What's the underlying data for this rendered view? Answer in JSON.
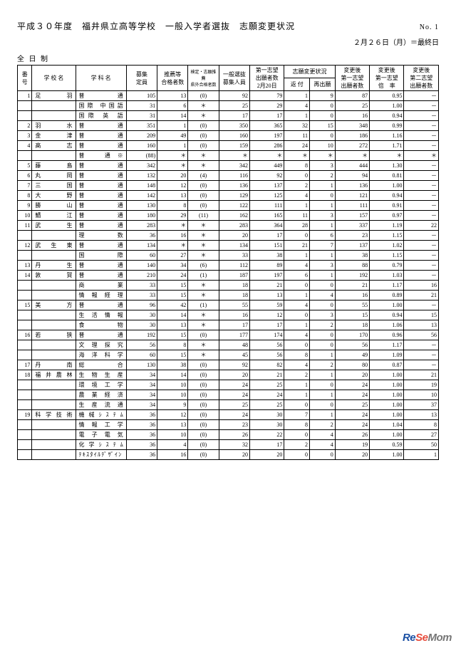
{
  "header": {
    "title": "平成３０年度　福井県立高等学校　一般入学者選抜　志願変更状況",
    "page_no": "No. 1",
    "date_note": "２月２６日（月）＝最終日",
    "section": "全 日 制"
  },
  "columns": {
    "no": "番号",
    "school": "学 校 名",
    "dept": "学 科 名",
    "quota": "募集\n定員",
    "rec": "推薦等\n合格者数",
    "spec": "検定・志願推薦\n県外合格者数",
    "gen": "一般選抜\n募集人員",
    "app1": "第一志望\n出願者数\n2月20日",
    "change_group": "志願変更状況",
    "ret": "返 付",
    "rea": "再出願",
    "aft": "変更後\n第一志望\n出願者数",
    "rate": "変更後\n第一志望\n倍　率",
    "s2": "変更後\n第二志望\n出願者数"
  },
  "rows": [
    {
      "no": "1",
      "school": "足　羽",
      "dept": "普　　通",
      "q": "105",
      "rec": "13",
      "spec": "(0)",
      "gen": "92",
      "a1": "79",
      "ret": "1",
      "rea": "9",
      "aft": "87",
      "rate": "0.95",
      "s2": "－"
    },
    {
      "no": "",
      "school": "",
      "dept": "国際 中国語",
      "q": "31",
      "rec": "6",
      "spec": "＊",
      "gen": "25",
      "a1": "29",
      "ret": "4",
      "rea": "0",
      "aft": "25",
      "rate": "1.00",
      "s2": "－"
    },
    {
      "no": "",
      "school": "",
      "dept": "国際 英 語",
      "q": "31",
      "rec": "14",
      "spec": "＊",
      "gen": "17",
      "a1": "17",
      "ret": "1",
      "rea": "0",
      "aft": "16",
      "rate": "0.94",
      "s2": "－"
    },
    {
      "no": "2",
      "school": "羽　水",
      "dept": "普　　通",
      "q": "351",
      "rec": "1",
      "spec": "(0)",
      "gen": "350",
      "a1": "365",
      "ret": "32",
      "rea": "15",
      "aft": "348",
      "rate": "0.99",
      "s2": "－"
    },
    {
      "no": "3",
      "school": "金　津",
      "dept": "普　　通",
      "q": "209",
      "rec": "49",
      "spec": "(0)",
      "gen": "160",
      "a1": "197",
      "ret": "11",
      "rea": "0",
      "aft": "186",
      "rate": "1.16",
      "s2": "－"
    },
    {
      "no": "4",
      "school": "高　志",
      "dept": "普　　通",
      "q": "160",
      "rec": "1",
      "spec": "(0)",
      "gen": "159",
      "a1": "286",
      "ret": "24",
      "rea": "10",
      "aft": "272",
      "rate": "1.71",
      "s2": "－"
    },
    {
      "no": "",
      "school": "",
      "dept": "普　通※",
      "q": "(88)",
      "rec": "＊",
      "spec": "＊",
      "gen": "＊",
      "a1": "＊",
      "ret": "＊",
      "rea": "＊",
      "aft": "＊",
      "rate": "＊",
      "s2": "＊"
    },
    {
      "no": "5",
      "school": "藤　島",
      "dept": "普　　通",
      "q": "342",
      "rec": "＊",
      "spec": "＊",
      "gen": "342",
      "a1": "449",
      "ret": "8",
      "rea": "3",
      "aft": "444",
      "rate": "1.30",
      "s2": "－"
    },
    {
      "no": "6",
      "school": "丸　岡",
      "dept": "普　　通",
      "q": "132",
      "rec": "20",
      "spec": "(4)",
      "gen": "116",
      "a1": "92",
      "ret": "0",
      "rea": "2",
      "aft": "94",
      "rate": "0.81",
      "s2": "－"
    },
    {
      "no": "7",
      "school": "三　国",
      "dept": "普　　通",
      "q": "148",
      "rec": "12",
      "spec": "(0)",
      "gen": "136",
      "a1": "137",
      "ret": "2",
      "rea": "1",
      "aft": "136",
      "rate": "1.00",
      "s2": "－"
    },
    {
      "no": "8",
      "school": "大　野",
      "dept": "普　　通",
      "q": "142",
      "rec": "13",
      "spec": "(0)",
      "gen": "129",
      "a1": "125",
      "ret": "4",
      "rea": "0",
      "aft": "121",
      "rate": "0.94",
      "s2": "－"
    },
    {
      "no": "9",
      "school": "勝　山",
      "dept": "普　　通",
      "q": "130",
      "rec": "8",
      "spec": "(0)",
      "gen": "122",
      "a1": "111",
      "ret": "1",
      "rea": "1",
      "aft": "111",
      "rate": "0.91",
      "s2": "－"
    },
    {
      "no": "10",
      "school": "鯖　江",
      "dept": "普　　通",
      "q": "180",
      "rec": "29",
      "spec": "(11)",
      "gen": "162",
      "a1": "165",
      "ret": "11",
      "rea": "3",
      "aft": "157",
      "rate": "0.97",
      "s2": "－"
    },
    {
      "no": "11",
      "school": "武　生",
      "dept": "普　　通",
      "q": "283",
      "rec": "＊",
      "spec": "＊",
      "gen": "283",
      "a1": "364",
      "ret": "28",
      "rea": "1",
      "aft": "337",
      "rate": "1.19",
      "s2": "22"
    },
    {
      "no": "",
      "school": "",
      "dept": "理　　数",
      "q": "36",
      "rec": "16",
      "spec": "＊",
      "gen": "20",
      "a1": "17",
      "ret": "0",
      "rea": "6",
      "aft": "23",
      "rate": "1.15",
      "s2": "－"
    },
    {
      "no": "12",
      "school": "武生東",
      "dept": "普　　通",
      "q": "134",
      "rec": "＊",
      "spec": "＊",
      "gen": "134",
      "a1": "151",
      "ret": "21",
      "rea": "7",
      "aft": "137",
      "rate": "1.02",
      "s2": "－"
    },
    {
      "no": "",
      "school": "",
      "dept": "国　　際",
      "q": "60",
      "rec": "27",
      "spec": "＊",
      "gen": "33",
      "a1": "38",
      "ret": "1",
      "rea": "1",
      "aft": "38",
      "rate": "1.15",
      "s2": "－"
    },
    {
      "no": "13",
      "school": "丹　生",
      "dept": "普　　通",
      "q": "140",
      "rec": "34",
      "spec": "(6)",
      "gen": "112",
      "a1": "89",
      "ret": "4",
      "rea": "3",
      "aft": "88",
      "rate": "0.79",
      "s2": "－"
    },
    {
      "no": "14",
      "school": "敦　賀",
      "dept": "普　　通",
      "q": "210",
      "rec": "24",
      "spec": "(1)",
      "gen": "187",
      "a1": "197",
      "ret": "6",
      "rea": "1",
      "aft": "192",
      "rate": "1.03",
      "s2": "－"
    },
    {
      "no": "",
      "school": "",
      "dept": "商　　業",
      "q": "33",
      "rec": "15",
      "spec": "＊",
      "gen": "18",
      "a1": "21",
      "ret": "0",
      "rea": "0",
      "aft": "21",
      "rate": "1.17",
      "s2": "16"
    },
    {
      "no": "",
      "school": "",
      "dept": "情報経理",
      "q": "33",
      "rec": "15",
      "spec": "＊",
      "gen": "18",
      "a1": "13",
      "ret": "1",
      "rea": "4",
      "aft": "16",
      "rate": "0.89",
      "s2": "21"
    },
    {
      "no": "15",
      "school": "美　方",
      "dept": "普　　通",
      "q": "96",
      "rec": "42",
      "spec": "(1)",
      "gen": "55",
      "a1": "59",
      "ret": "4",
      "rea": "0",
      "aft": "55",
      "rate": "1.00",
      "s2": "－"
    },
    {
      "no": "",
      "school": "",
      "dept": "生活情報",
      "q": "30",
      "rec": "14",
      "spec": "＊",
      "gen": "16",
      "a1": "12",
      "ret": "0",
      "rea": "3",
      "aft": "15",
      "rate": "0.94",
      "s2": "15"
    },
    {
      "no": "",
      "school": "",
      "dept": "食　　物",
      "q": "30",
      "rec": "13",
      "spec": "＊",
      "gen": "17",
      "a1": "17",
      "ret": "1",
      "rea": "2",
      "aft": "18",
      "rate": "1.06",
      "s2": "13"
    },
    {
      "no": "16",
      "school": "若　狭",
      "dept": "普　　通",
      "q": "192",
      "rec": "15",
      "spec": "(0)",
      "gen": "177",
      "a1": "174",
      "ret": "4",
      "rea": "0",
      "aft": "170",
      "rate": "0.96",
      "s2": "56"
    },
    {
      "no": "",
      "school": "",
      "dept": "文理探究",
      "q": "56",
      "rec": "8",
      "spec": "＊",
      "gen": "48",
      "a1": "56",
      "ret": "0",
      "rea": "0",
      "aft": "56",
      "rate": "1.17",
      "s2": "－"
    },
    {
      "no": "",
      "school": "",
      "dept": "海洋科学",
      "q": "60",
      "rec": "15",
      "spec": "＊",
      "gen": "45",
      "a1": "56",
      "ret": "8",
      "rea": "1",
      "aft": "49",
      "rate": "1.09",
      "s2": "－"
    },
    {
      "no": "17",
      "school": "丹　南",
      "dept": "総　　合",
      "q": "130",
      "rec": "38",
      "spec": "(0)",
      "gen": "92",
      "a1": "82",
      "ret": "4",
      "rea": "2",
      "aft": "80",
      "rate": "0.87",
      "s2": "－"
    },
    {
      "no": "18",
      "school": "福井農林",
      "dept": "生物生産",
      "q": "34",
      "rec": "14",
      "spec": "(0)",
      "gen": "20",
      "a1": "21",
      "ret": "2",
      "rea": "1",
      "aft": "20",
      "rate": "1.00",
      "s2": "21"
    },
    {
      "no": "",
      "school": "",
      "dept": "環境工学",
      "q": "34",
      "rec": "10",
      "spec": "(0)",
      "gen": "24",
      "a1": "25",
      "ret": "1",
      "rea": "0",
      "aft": "24",
      "rate": "1.00",
      "s2": "19"
    },
    {
      "no": "",
      "school": "",
      "dept": "農業経済",
      "q": "34",
      "rec": "10",
      "spec": "(0)",
      "gen": "24",
      "a1": "24",
      "ret": "1",
      "rea": "1",
      "aft": "24",
      "rate": "1.00",
      "s2": "10"
    },
    {
      "no": "",
      "school": "",
      "dept": "生産流通",
      "q": "34",
      "rec": "9",
      "spec": "(0)",
      "gen": "25",
      "a1": "25",
      "ret": "0",
      "rea": "0",
      "aft": "25",
      "rate": "1.00",
      "s2": "37"
    },
    {
      "no": "19",
      "school": "科学技術",
      "dept": "機械ｼｽﾃﾑ",
      "q": "36",
      "rec": "12",
      "spec": "(0)",
      "gen": "24",
      "a1": "30",
      "ret": "7",
      "rea": "1",
      "aft": "24",
      "rate": "1.00",
      "s2": "13"
    },
    {
      "no": "",
      "school": "",
      "dept": "情報工学",
      "q": "36",
      "rec": "13",
      "spec": "(0)",
      "gen": "23",
      "a1": "30",
      "ret": "8",
      "rea": "2",
      "aft": "24",
      "rate": "1.04",
      "s2": "8"
    },
    {
      "no": "",
      "school": "",
      "dept": "電子電気",
      "q": "36",
      "rec": "10",
      "spec": "(0)",
      "gen": "26",
      "a1": "22",
      "ret": "0",
      "rea": "4",
      "aft": "26",
      "rate": "1.00",
      "s2": "27"
    },
    {
      "no": "",
      "school": "",
      "dept": "化学ｼｽﾃﾑ",
      "q": "36",
      "rec": "4",
      "spec": "(0)",
      "gen": "32",
      "a1": "17",
      "ret": "2",
      "rea": "4",
      "aft": "19",
      "rate": "0.59",
      "s2": "50"
    },
    {
      "no": "",
      "school": "",
      "dept": "ﾃｷｽﾀｲﾙﾃﾞｻﾞｲﾝ",
      "q": "36",
      "rec": "16",
      "spec": "(0)",
      "gen": "20",
      "a1": "20",
      "ret": "0",
      "rea": "0",
      "aft": "20",
      "rate": "1.00",
      "s2": "1"
    }
  ],
  "watermark": {
    "re": "Re",
    "se": "Se",
    "mom": "Mom"
  }
}
